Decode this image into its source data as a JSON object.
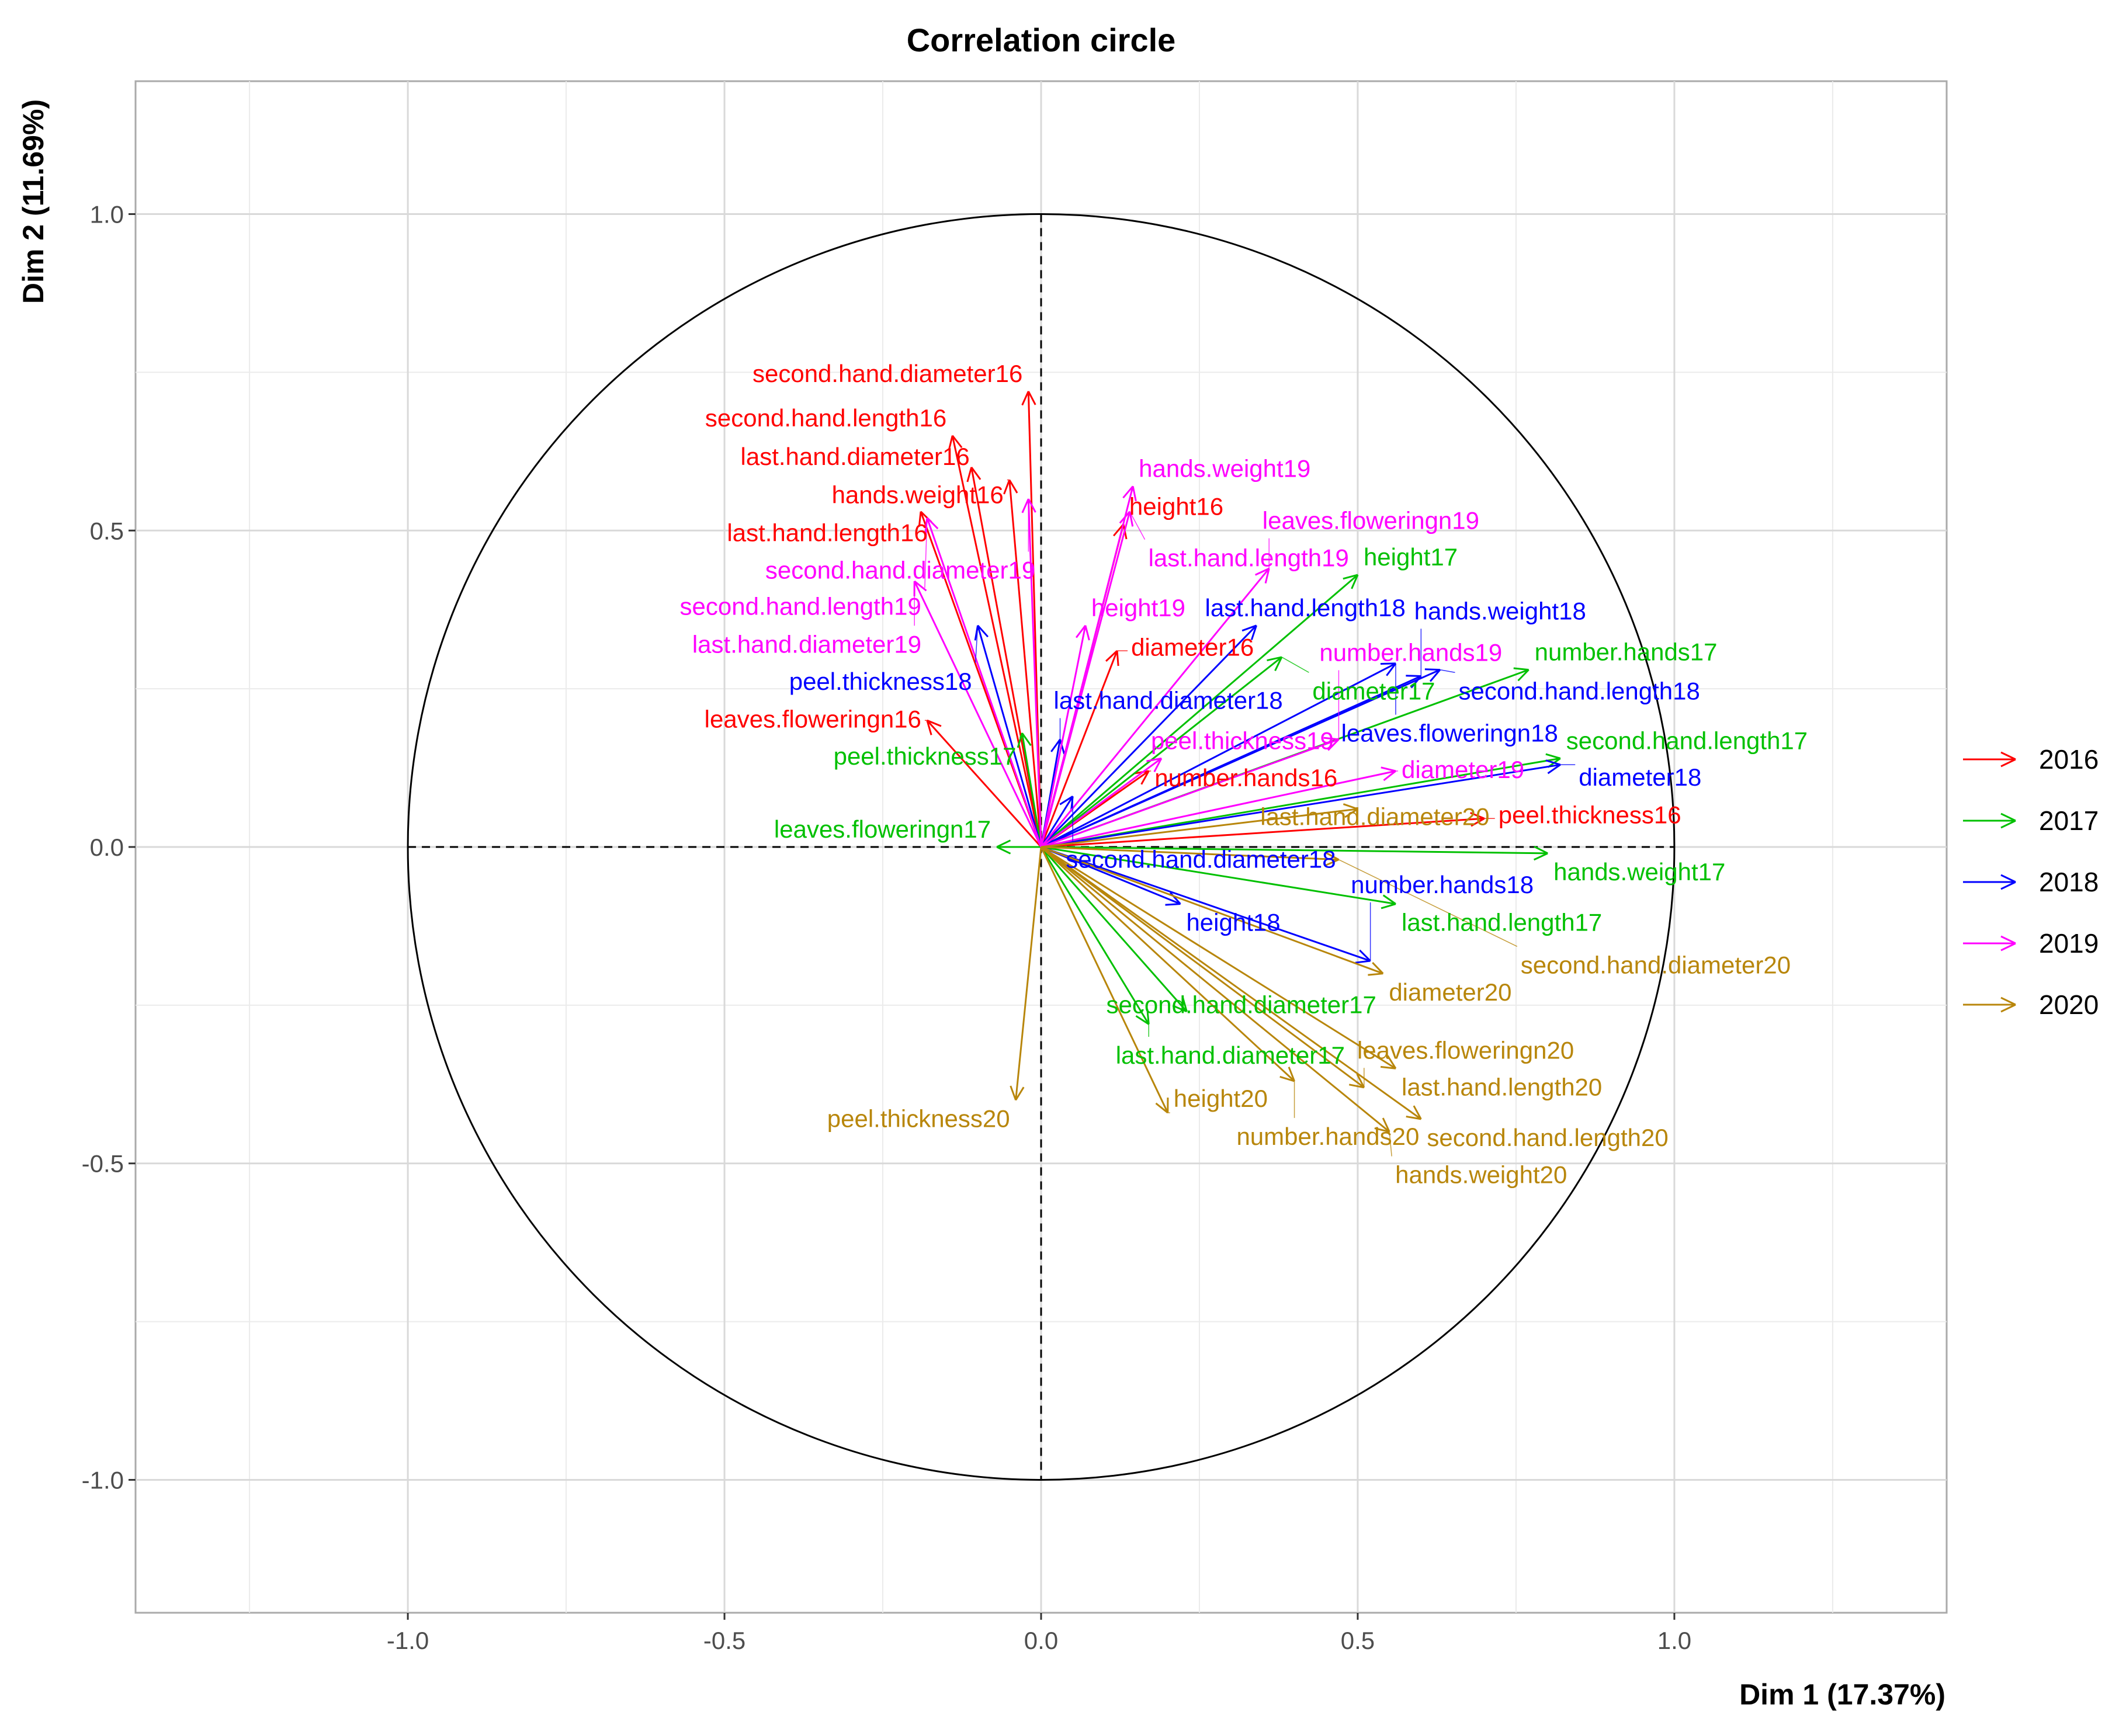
{
  "chart_data": {
    "type": "scatter",
    "title": "Correlation circle",
    "xlabel": "Dim 1 (17.37%)",
    "ylabel": "Dim 2 (11.69%)",
    "xlim": [
      -1.43,
      1.43
    ],
    "ylim": [
      -1.21,
      1.21
    ],
    "xticks": [
      "-1.0",
      "-0.5",
      "0.0",
      "0.5",
      "1.0"
    ],
    "yticks": [
      "-1.0",
      "-0.5",
      "0.0",
      "0.5",
      "1.0"
    ],
    "grid": true,
    "legend_position": "right",
    "series": [
      {
        "name": "2016",
        "color": "#FF0000",
        "points": [
          {
            "label": "second.hand.diameter16",
            "x": -0.02,
            "y": 0.72
          },
          {
            "label": "second.hand.length16",
            "x": -0.14,
            "y": 0.65
          },
          {
            "label": "last.hand.diameter16",
            "x": -0.11,
            "y": 0.6
          },
          {
            "label": "hands.weight16",
            "x": -0.05,
            "y": 0.58
          },
          {
            "label": "last.hand.length16",
            "x": -0.19,
            "y": 0.53
          },
          {
            "label": "leaves.floweringn16",
            "x": -0.18,
            "y": 0.2
          },
          {
            "label": "height16",
            "x": 0.13,
            "y": 0.51
          },
          {
            "label": "diameter16",
            "x": 0.12,
            "y": 0.31
          },
          {
            "label": "number.hands16",
            "x": 0.17,
            "y": 0.12
          },
          {
            "label": "peel.thickness16",
            "x": 0.7,
            "y": 0.045
          }
        ]
      },
      {
        "name": "2017",
        "color": "#00C000",
        "points": [
          {
            "label": "height17",
            "x": 0.5,
            "y": 0.43
          },
          {
            "label": "peel.thickness17",
            "x": -0.03,
            "y": 0.18
          },
          {
            "label": "leaves.floweringn17",
            "x": -0.07,
            "y": 0.0
          },
          {
            "label": "number.hands17",
            "x": 0.77,
            "y": 0.28
          },
          {
            "label": "second.hand.length17",
            "x": 0.82,
            "y": 0.14
          },
          {
            "label": "hands.weight17",
            "x": 0.8,
            "y": -0.01
          },
          {
            "label": "last.hand.length17",
            "x": 0.56,
            "y": -0.09
          },
          {
            "label": "second.hand.diameter17",
            "x": 0.23,
            "y": -0.26
          },
          {
            "label": "last.hand.diameter17",
            "x": 0.17,
            "y": -0.28
          },
          {
            "label": "diameter17",
            "x": 0.38,
            "y": 0.3
          }
        ]
      },
      {
        "name": "2018",
        "color": "#0000FF",
        "points": [
          {
            "label": "peel.thickness18",
            "x": -0.1,
            "y": 0.35
          },
          {
            "label": "last.hand.length18",
            "x": 0.34,
            "y": 0.35
          },
          {
            "label": "leaves.floweringn18",
            "x": 0.56,
            "y": 0.29
          },
          {
            "label": "second.hand.length18",
            "x": 0.63,
            "y": 0.28
          },
          {
            "label": "hands.weight18",
            "x": 0.6,
            "y": 0.27
          },
          {
            "label": "last.hand.diameter18",
            "x": 0.03,
            "y": 0.17
          },
          {
            "label": "diameter18",
            "x": 0.82,
            "y": 0.13
          },
          {
            "label": "second.hand.diameter18",
            "x": 0.05,
            "y": 0.08
          },
          {
            "label": "height18",
            "x": 0.22,
            "y": -0.09
          },
          {
            "label": "number.hands18",
            "x": 0.52,
            "y": -0.18
          }
        ]
      },
      {
        "name": "2019",
        "color": "#FF00FF",
        "points": [
          {
            "label": "second.hand.diameter19",
            "x": -0.02,
            "y": 0.55
          },
          {
            "label": "second.hand.length19",
            "x": -0.18,
            "y": 0.52
          },
          {
            "label": "last.hand.length19",
            "x": 0.14,
            "y": 0.53
          },
          {
            "label": "hands.weight19",
            "x": 0.145,
            "y": 0.57
          },
          {
            "label": "last.hand.diameter19",
            "x": -0.2,
            "y": 0.42
          },
          {
            "label": "leaves.floweringn19",
            "x": 0.36,
            "y": 0.44
          },
          {
            "label": "height19",
            "x": 0.07,
            "y": 0.35
          },
          {
            "label": "diameter19",
            "x": 0.56,
            "y": 0.12
          },
          {
            "label": "peel.thickness19",
            "x": 0.19,
            "y": 0.14
          },
          {
            "label": "number.hands19",
            "x": 0.47,
            "y": 0.17
          }
        ]
      },
      {
        "name": "2020",
        "color": "#B8860B",
        "points": [
          {
            "label": "peel.thickness20",
            "x": -0.04,
            "y": -0.4
          },
          {
            "label": "height20",
            "x": 0.2,
            "y": -0.42
          },
          {
            "label": "number.hands20",
            "x": 0.4,
            "y": -0.37
          },
          {
            "label": "leaves.floweringn20",
            "x": 0.51,
            "y": -0.38
          },
          {
            "label": "last.hand.length20",
            "x": 0.56,
            "y": -0.35
          },
          {
            "label": "second.hand.length20",
            "x": 0.6,
            "y": -0.43
          },
          {
            "label": "hands.weight20",
            "x": 0.55,
            "y": -0.45
          },
          {
            "label": "diameter20",
            "x": 0.54,
            "y": -0.2
          },
          {
            "label": "second.hand.diameter20",
            "x": 0.47,
            "y": -0.02
          },
          {
            "label": "last.hand.diameter20",
            "x": 0.5,
            "y": 0.06
          }
        ]
      }
    ]
  }
}
